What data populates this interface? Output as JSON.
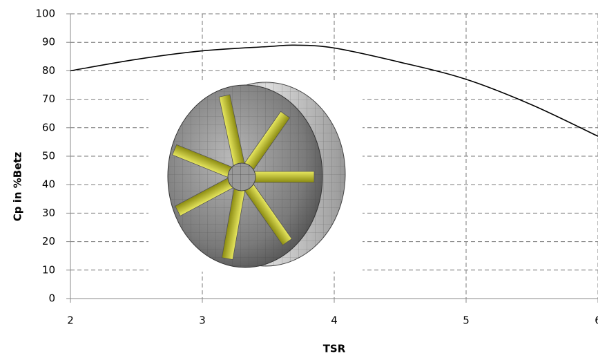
{
  "chart_data": {
    "type": "line",
    "xlabel": "TSR",
    "ylabel": "Cp in %Betz",
    "x": [
      2,
      2.5,
      3,
      3.5,
      3.7,
      4,
      4.5,
      5,
      5.5,
      6
    ],
    "series": [
      {
        "color": "#000000",
        "values": [
          80,
          84,
          87,
          88.5,
          89,
          88,
          83,
          77,
          68,
          57
        ]
      }
    ],
    "xlim": [
      2,
      6
    ],
    "xticks": [
      2,
      3,
      4,
      5,
      6
    ],
    "ylim": [
      0,
      100
    ],
    "yticks": [
      0,
      10,
      20,
      30,
      40,
      50,
      60,
      70,
      80,
      90,
      100
    ],
    "grid": true
  }
}
